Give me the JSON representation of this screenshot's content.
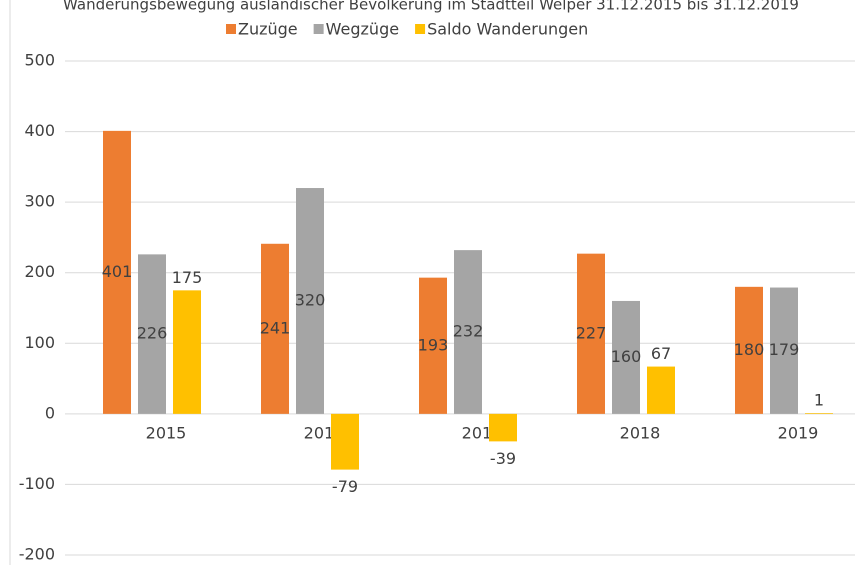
{
  "chart_data": {
    "type": "bar",
    "title": "Wanderungsbewegung ausländischer Bevölkerung im Stadtteil Welper 31.12.2015 bis 31.12.2019",
    "categories": [
      "2015",
      "2016",
      "2017",
      "2018",
      "2019"
    ],
    "series": [
      {
        "name": "Zuzüge",
        "color": "#ed7d31",
        "values": [
          401,
          241,
          193,
          227,
          180
        ]
      },
      {
        "name": "Wegzüge",
        "color": "#a5a5a5",
        "values": [
          226,
          320,
          232,
          160,
          179
        ]
      },
      {
        "name": "Saldo Wanderungen",
        "color": "#ffc000",
        "values": [
          175,
          -79,
          -39,
          67,
          1
        ]
      }
    ],
    "ylim": [
      -200,
      500
    ],
    "yticks": [
      -200,
      -100,
      0,
      100,
      200,
      300,
      400,
      500
    ],
    "grid": true,
    "legend": "top"
  }
}
